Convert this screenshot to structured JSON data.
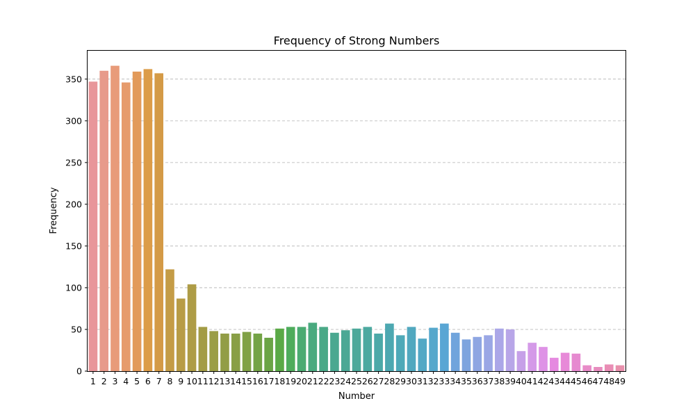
{
  "chart_data": {
    "type": "bar",
    "title": "Frequency of Strong Numbers",
    "xlabel": "Number",
    "ylabel": "Frequency",
    "categories": [
      "1",
      "2",
      "3",
      "4",
      "5",
      "6",
      "7",
      "8",
      "9",
      "10",
      "11",
      "12",
      "13",
      "14",
      "15",
      "16",
      "17",
      "18",
      "19",
      "20",
      "21",
      "22",
      "23",
      "24",
      "25",
      "26",
      "27",
      "28",
      "29",
      "30",
      "31",
      "32",
      "33",
      "34",
      "35",
      "36",
      "37",
      "38",
      "39",
      "40",
      "41",
      "42",
      "43",
      "44",
      "45",
      "46",
      "47",
      "48",
      "49"
    ],
    "values": [
      347,
      360,
      366,
      346,
      359,
      362,
      357,
      122,
      87,
      104,
      53,
      48,
      45,
      45,
      47,
      45,
      40,
      51,
      53,
      53,
      58,
      53,
      46,
      49,
      51,
      53,
      45,
      57,
      43,
      53,
      39,
      52,
      57,
      46,
      38,
      41,
      43,
      51,
      50,
      24,
      34,
      29,
      16,
      22,
      21,
      7,
      5,
      8,
      7
    ],
    "ylim": [
      0,
      384
    ],
    "yticks": [
      0,
      50,
      100,
      150,
      200,
      250,
      300,
      350
    ],
    "grid": "y-axis dashed",
    "colors": [
      "#e8969a",
      "#e79a8b",
      "#e89b7a",
      "#e69b6c",
      "#e29a5a",
      "#dc9c48",
      "#d49a46",
      "#c49c46",
      "#b89c46",
      "#ae9c46",
      "#a39c45",
      "#9b9e46",
      "#929d46",
      "#899f46",
      "#80a146",
      "#74a346",
      "#6ba446",
      "#5aa946",
      "#4eac5c",
      "#4aab72",
      "#4aaa7f",
      "#4aa987",
      "#4aa890",
      "#4ba895",
      "#4ca99a",
      "#4ca9a0",
      "#4ca9a8",
      "#4da8b1",
      "#4ea9b8",
      "#51a8bf",
      "#53a8c5",
      "#56a8cc",
      "#59a6d4",
      "#70a4dc",
      "#7ea4de",
      "#8ea6e2",
      "#9aa7e5",
      "#aba7e8",
      "#b8a6e8",
      "#c6a0e8",
      "#d49ae8",
      "#de92e6",
      "#e589e0",
      "#e78ad8",
      "#e68ad0",
      "#e88bc8",
      "#e78cbe",
      "#e98db5",
      "#e890ac"
    ]
  }
}
